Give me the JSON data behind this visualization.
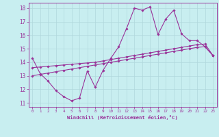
{
  "xlabel": "Windchill (Refroidissement éolien,°C)",
  "background_color": "#c8eef0",
  "grid_color": "#b0d8dc",
  "line_color": "#993399",
  "xlim": [
    -0.5,
    23.5
  ],
  "ylim": [
    10.7,
    18.4
  ],
  "xticks": [
    0,
    1,
    2,
    3,
    4,
    5,
    6,
    7,
    8,
    9,
    10,
    11,
    12,
    13,
    14,
    15,
    16,
    17,
    18,
    19,
    20,
    21,
    22,
    23
  ],
  "yticks": [
    11,
    12,
    13,
    14,
    15,
    16,
    17,
    18
  ],
  "line1_x": [
    0,
    1,
    2,
    3,
    4,
    5,
    6,
    7,
    8,
    9,
    10,
    11,
    12,
    13,
    14,
    15,
    16,
    17,
    18,
    19,
    20,
    21,
    22,
    23
  ],
  "line1_y": [
    14.3,
    13.15,
    12.6,
    11.9,
    11.45,
    11.15,
    11.35,
    13.35,
    12.15,
    13.4,
    14.3,
    15.15,
    16.5,
    18.0,
    17.85,
    18.1,
    16.05,
    17.2,
    17.85,
    16.1,
    15.6,
    15.6,
    15.15,
    14.5
  ],
  "line2_x": [
    0,
    1,
    2,
    3,
    4,
    5,
    6,
    7,
    8,
    9,
    10,
    11,
    12,
    13,
    14,
    15,
    16,
    17,
    18,
    19,
    20,
    21,
    22,
    23
  ],
  "line2_y": [
    13.6,
    13.65,
    13.7,
    13.75,
    13.8,
    13.85,
    13.9,
    13.95,
    14.0,
    14.1,
    14.2,
    14.3,
    14.4,
    14.5,
    14.6,
    14.7,
    14.8,
    14.9,
    15.0,
    15.1,
    15.2,
    15.3,
    15.35,
    14.5
  ],
  "line3_x": [
    0,
    1,
    2,
    3,
    4,
    5,
    6,
    7,
    8,
    9,
    10,
    11,
    12,
    13,
    14,
    15,
    16,
    17,
    18,
    19,
    20,
    21,
    22,
    23
  ],
  "line3_y": [
    13.0,
    13.1,
    13.2,
    13.3,
    13.4,
    13.5,
    13.6,
    13.7,
    13.8,
    13.9,
    14.0,
    14.1,
    14.2,
    14.3,
    14.4,
    14.5,
    14.6,
    14.7,
    14.8,
    14.9,
    15.0,
    15.1,
    15.15,
    14.5
  ]
}
